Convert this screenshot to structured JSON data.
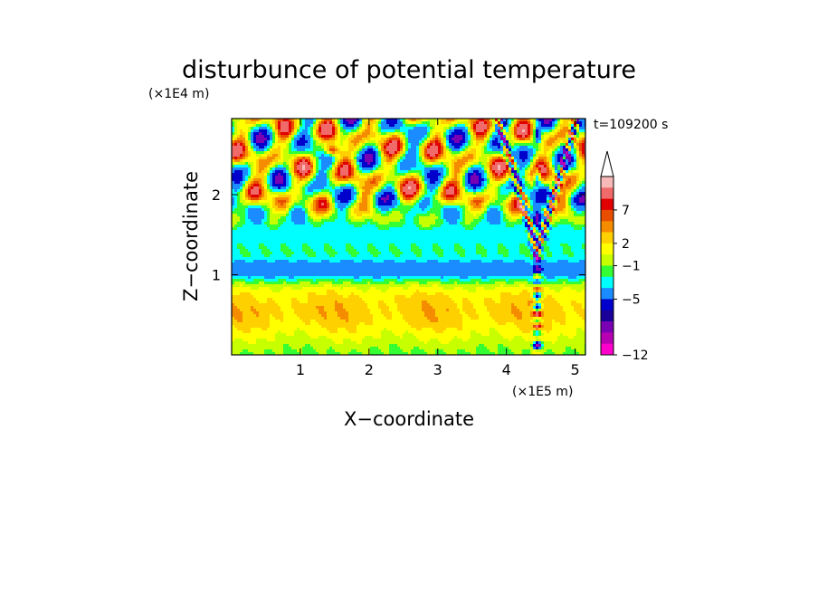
{
  "chart_data": {
    "type": "heatmap",
    "title": "disturbunce of potential temperature",
    "time_label": "t=109200 s",
    "xlabel": "X−coordinate",
    "ylabel": "Z−coordinate",
    "x_unit": "(×1E5 m)",
    "y_unit": "(×1E4 m)",
    "xlim": [
      0,
      5.15
    ],
    "ylim": [
      0,
      2.95
    ],
    "x_ticks": [
      "1",
      "2",
      "3",
      "4",
      "5"
    ],
    "y_ticks": [
      "1",
      "2"
    ],
    "colorbar_labels": [
      "7",
      "2",
      "−1",
      "−5",
      "−12"
    ],
    "colorbar_colors": [
      "#f7b8b8",
      "#f06a6a",
      "#e00000",
      "#e84d00",
      "#f58c00",
      "#ffd000",
      "#ffff00",
      "#c8ff00",
      "#33ff33",
      "#00ffff",
      "#1a8cff",
      "#0000cc",
      "#1a0099",
      "#7a00b3",
      "#b800b3",
      "#ff00cc"
    ]
  }
}
